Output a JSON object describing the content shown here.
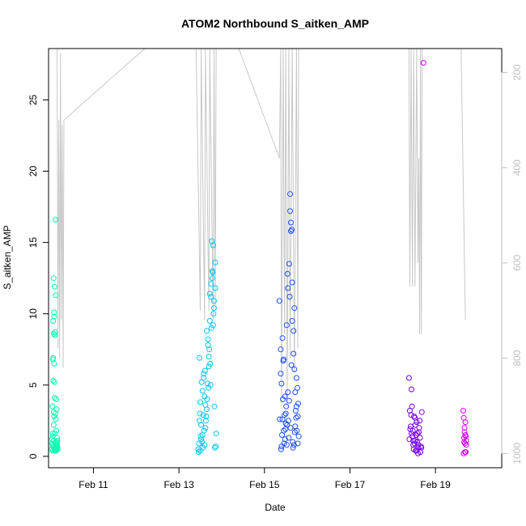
{
  "chart_data": {
    "type": "scatter",
    "title": "ATOM2 Northbound S_aitken_AMP",
    "xlabel": "Date",
    "ylabel": "S_aitken_AMP",
    "x_unit": "days (February)",
    "xlim": [
      9.95,
      20.55
    ],
    "ylim": [
      -0.8,
      28.6
    ],
    "x_ticks": [
      {
        "value": 11,
        "label": "Feb 11"
      },
      {
        "value": 13,
        "label": "Feb 13"
      },
      {
        "value": 15,
        "label": "Feb 15"
      },
      {
        "value": 17,
        "label": "Feb 17"
      },
      {
        "value": 19,
        "label": "Feb 19"
      }
    ],
    "y_ticks": [
      0,
      5,
      10,
      15,
      20,
      25
    ],
    "right_axis": {
      "color": "#bebebe",
      "reversed": true,
      "lim": [
        1030,
        150
      ],
      "ticks": [
        200,
        400,
        600,
        800,
        1000
      ]
    },
    "altitude_trace": {
      "color": "#c8c8c8",
      "points": [
        [
          10.15,
          150
        ],
        [
          10.17,
          780
        ],
        [
          10.19,
          300
        ],
        [
          10.21,
          800
        ],
        [
          10.23,
          160
        ],
        [
          10.25,
          720
        ],
        [
          10.27,
          310
        ],
        [
          10.29,
          820
        ],
        [
          10.31,
          300
        ],
        [
          12.2,
          150
        ],
        [
          13.4,
          150
        ],
        [
          13.5,
          700
        ],
        [
          13.52,
          150
        ],
        [
          13.6,
          720
        ],
        [
          13.62,
          150
        ],
        [
          13.7,
          700
        ],
        [
          13.72,
          150
        ],
        [
          13.8,
          720
        ],
        [
          13.82,
          150
        ],
        [
          13.85,
          700
        ],
        [
          13.87,
          150
        ],
        [
          14.4,
          150
        ],
        [
          15.35,
          380
        ],
        [
          15.38,
          150
        ],
        [
          15.4,
          900
        ],
        [
          15.44,
          150
        ],
        [
          15.47,
          750
        ],
        [
          15.5,
          150
        ],
        [
          15.53,
          900
        ],
        [
          15.57,
          150
        ],
        [
          15.6,
          800
        ],
        [
          15.65,
          150
        ],
        [
          15.7,
          830
        ],
        [
          15.75,
          150
        ],
        [
          15.78,
          780
        ],
        [
          15.8,
          150
        ],
        [
          18.38,
          150
        ],
        [
          18.4,
          650
        ],
        [
          18.43,
          150
        ],
        [
          18.46,
          650
        ],
        [
          18.49,
          150
        ],
        [
          18.52,
          650
        ],
        [
          18.56,
          150
        ],
        [
          18.59,
          600
        ],
        [
          18.61,
          380
        ],
        [
          18.63,
          750
        ],
        [
          18.65,
          150
        ],
        [
          18.67,
          750
        ],
        [
          18.69,
          150
        ],
        [
          19.6,
          150
        ],
        [
          19.7,
          720
        ]
      ]
    },
    "series": [
      {
        "color": "#00ffb0",
        "x": [
          10.02,
          10.03,
          10.04,
          10.04,
          10.05,
          10.05,
          10.05,
          10.06,
          10.06,
          10.06,
          10.07,
          10.07,
          10.07,
          10.07,
          10.08,
          10.08,
          10.08,
          10.09,
          10.09,
          10.09,
          10.1,
          10.1,
          10.1,
          10.11,
          10.11,
          10.11,
          10.12,
          10.12,
          10.12,
          10.13,
          10.13,
          10.13,
          10.14,
          10.14,
          10.14,
          10.15,
          10.15,
          10.15,
          10.16,
          10.16,
          10.16,
          10.03,
          10.05,
          10.06,
          10.07,
          10.08,
          10.09,
          10.1,
          10.11,
          10.12,
          10.13,
          10.14
        ],
        "y": [
          0.5,
          1.2,
          0.8,
          3.5,
          6.8,
          0.4,
          1.4,
          9.5,
          5.3,
          0.7,
          12.5,
          8.6,
          3.1,
          1.1,
          10.1,
          6.5,
          2.8,
          0.5,
          11.9,
          4.1,
          8.5,
          1.6,
          0.4,
          16.6,
          3.0,
          0.9,
          11.3,
          2.6,
          0.5,
          4.0,
          1.8,
          0.6,
          1.0,
          3.3,
          0.7,
          0.5,
          1.3,
          0.8,
          0.6,
          1.1,
          0.5,
          0.9,
          1.6,
          6.9,
          2.2,
          9.8,
          5.2,
          8.7,
          0.6,
          1.0,
          0.4,
          0.8
        ]
      },
      {
        "color": "#00c8f0",
        "x": [
          13.45,
          13.48,
          13.5,
          13.52,
          13.55,
          13.58,
          13.6,
          13.62,
          13.65,
          13.68,
          13.7,
          13.72,
          13.75,
          13.78,
          13.8,
          13.82,
          13.85,
          13.5,
          13.55,
          13.6,
          13.65,
          13.7,
          13.75,
          13.8,
          13.85,
          13.48,
          13.52,
          13.58,
          13.62,
          13.68,
          13.72,
          13.78,
          13.82,
          13.46,
          13.54,
          13.64,
          13.74,
          13.84,
          13.49,
          13.59,
          13.69,
          13.79,
          13.53,
          13.63,
          13.73,
          13.83,
          13.51,
          13.61,
          13.71,
          13.81,
          13.56,
          13.66,
          13.76,
          13.57,
          13.67,
          13.77,
          13.86,
          13.47,
          13.87
        ],
        "y": [
          0.5,
          2.5,
          3.8,
          1.2,
          4.6,
          5.5,
          0.8,
          2.0,
          3.3,
          7.8,
          6.3,
          9.5,
          11.2,
          12.5,
          14.8,
          10.4,
          13.6,
          0.4,
          1.5,
          4.2,
          8.8,
          7.0,
          12.1,
          9.2,
          11.8,
          6.9,
          2.2,
          5.8,
          3.6,
          8.2,
          11.4,
          13.0,
          10.9,
          0.3,
          1.0,
          2.8,
          5.0,
          0.6,
          3.0,
          1.8,
          4.8,
          12.9,
          5.2,
          2.5,
          6.5,
          3.5,
          1.4,
          6.0,
          7.5,
          10.0,
          0.6,
          4.0,
          9.0,
          2.9,
          5.1,
          15.1,
          0.7,
          0.9,
          1.6
        ]
      },
      {
        "color": "#1e50ff",
        "x": [
          15.35,
          15.38,
          15.4,
          15.42,
          15.45,
          15.48,
          15.5,
          15.52,
          15.55,
          15.58,
          15.6,
          15.62,
          15.65,
          15.68,
          15.7,
          15.72,
          15.75,
          15.78,
          15.8,
          15.4,
          15.45,
          15.5,
          15.55,
          15.6,
          15.65,
          15.7,
          15.75,
          15.42,
          15.48,
          15.52,
          15.58,
          15.62,
          15.68,
          15.72,
          15.78,
          15.38,
          15.44,
          15.54,
          15.64,
          15.74,
          15.41,
          15.51,
          15.61,
          15.71,
          15.46,
          15.56,
          15.66,
          15.76,
          15.43,
          15.53,
          15.63,
          15.73,
          15.47,
          15.57,
          15.67,
          15.77,
          15.59,
          15.69,
          15.79,
          15.36,
          15.49,
          15.39
        ],
        "y": [
          10.9,
          7.5,
          5.1,
          8.3,
          6.8,
          4.2,
          2.3,
          9.2,
          11.8,
          13.5,
          18.4,
          15.8,
          9.5,
          7.2,
          6.1,
          4.5,
          3.5,
          2.8,
          1.4,
          0.7,
          1.8,
          3.0,
          4.5,
          17.2,
          12.2,
          10.4,
          5.5,
          2.6,
          1.2,
          0.8,
          3.9,
          16.4,
          8.8,
          2.1,
          0.9,
          5.8,
          6.7,
          12.8,
          15.9,
          2.7,
          1.5,
          3.5,
          2.0,
          1.7,
          0.9,
          2.5,
          1.0,
          1.8,
          4.0,
          2.2,
          6.4,
          3.2,
          2.9,
          1.3,
          0.6,
          4.8,
          11.2,
          0.8,
          3.7,
          2.6,
          1.9,
          0.5
        ]
      },
      {
        "color": "#7800e6",
        "x": [
          18.38,
          18.4,
          18.42,
          18.44,
          18.46,
          18.48,
          18.5,
          18.52,
          18.54,
          18.56,
          18.58,
          18.6,
          18.62,
          18.64,
          18.66,
          18.68,
          18.41,
          18.45,
          18.49,
          18.53,
          18.57,
          18.61,
          18.65,
          18.39,
          18.43,
          18.47,
          18.51,
          18.55,
          18.59,
          18.63,
          18.67,
          18.44,
          18.52,
          18.6,
          18.48,
          18.56
        ],
        "y": [
          5.5,
          3.2,
          2.1,
          4.7,
          1.4,
          0.8,
          2.8,
          1.1,
          0.4,
          2.4,
          1.6,
          0.6,
          2.0,
          1.3,
          0.7,
          3.1,
          1.9,
          3.5,
          0.5,
          2.2,
          1.0,
          1.7,
          0.3,
          1.2,
          2.9,
          1.8,
          0.9,
          1.5,
          0.2,
          2.5,
          0.6,
          1.6,
          2.7,
          0.8,
          1.1,
          0.4
        ]
      },
      {
        "color": "#d200f0",
        "x": [
          18.72,
          19.65,
          19.66,
          19.67,
          19.68,
          19.69,
          19.7,
          19.71,
          19.72,
          19.66,
          19.68,
          19.7,
          19.72,
          19.67,
          19.69,
          19.71
        ],
        "y": [
          27.6,
          3.2,
          2.7,
          1.3,
          2.0,
          0.9,
          1.5,
          0.3,
          1.1,
          0.2,
          1.7,
          2.4,
          0.8,
          1.0,
          0.3,
          1.4
        ]
      }
    ]
  }
}
